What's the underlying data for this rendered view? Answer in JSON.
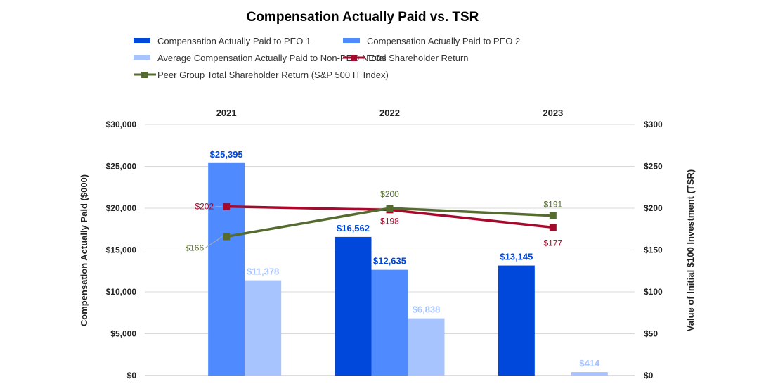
{
  "chart_data": {
    "type": "bar",
    "title": "Compensation Actually Paid vs. TSR",
    "categories": [
      "2021",
      "2022",
      "2023"
    ],
    "ylabel": "Compensation Actually Paid ($000)",
    "y2label": "Value of Initial $100 Investment (TSR)",
    "ylim": [
      0,
      30000
    ],
    "y2lim": [
      0,
      300
    ],
    "yticks": [
      "$0",
      "$5,000",
      "$10,000",
      "$15,000",
      "$20,000",
      "$25,000",
      "$30,000"
    ],
    "y2ticks": [
      "$0",
      "$50",
      "$100",
      "$150",
      "$200",
      "$250",
      "$300"
    ],
    "grid": true,
    "legend_placement": "top",
    "bar_series": [
      {
        "name": "Compensation Actually Paid to PEO 1",
        "color": "#0047DC",
        "values": [
          null,
          16562,
          13145
        ],
        "labels": [
          "",
          "$16,562",
          "$13,145"
        ],
        "label_color": "#0047DC"
      },
      {
        "name": "Compensation Actually Paid to PEO 2",
        "color": "#4F8BFF",
        "values": [
          25395,
          12635,
          null
        ],
        "labels": [
          "$25,395",
          "$12,635",
          ""
        ],
        "label_color": "#0047DC"
      },
      {
        "name": "Average Compensation Actually Paid to Non-PEO NEOs",
        "color": "#A8C4FF",
        "values": [
          11378,
          6838,
          414
        ],
        "labels": [
          "$11,378",
          "$6,838",
          "$414"
        ],
        "label_color": "#A8C4FF"
      }
    ],
    "line_series": [
      {
        "name": "Total Shareholder Return",
        "color": "#A50A2D",
        "values": [
          202,
          198,
          177
        ],
        "labels": [
          "$202",
          "$198",
          "$177"
        ]
      },
      {
        "name": "Peer Group Total Shareholder Return (S&P 500 IT Index)",
        "color": "#556B2F",
        "values": [
          166,
          200,
          191
        ],
        "labels": [
          "$166",
          "$200",
          "$191"
        ]
      }
    ]
  }
}
